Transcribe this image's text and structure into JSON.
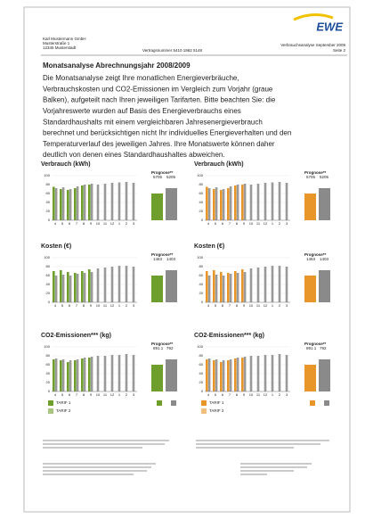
{
  "header": {
    "logo": "EWE",
    "address": [
      "Karl Mustermann GmbH",
      "Musterstraße 1",
      "12345 Musterstadt"
    ],
    "contract": "Vertragsnummer 5410 1962 5148",
    "report": "Verbrauchsanalyse September 2009",
    "page": "Seite 2"
  },
  "title": "Monatsanalyse Abrechnungsjahr 2008/2009",
  "paragraph": [
    "Die Monatsanalyse zeigt Ihre monatlichen Energieverbräuche,",
    "Verbrauchskosten und CO2-Emissionen im Vergleich  zum Vorjahr (graue",
    "Balken), aufgeteilt nach Ihren jeweiligen Tarifarten. Bitte beachten Sie: die",
    "Vorjahreswerte wurden auf Basis des Energieverbrauchs eines",
    "Standardhaushalts mit einem vergleichbaren Jahresenergieverbrauch",
    "berechnet und berücksichtigen nicht Ihr individuelles Energieverhalten und den",
    "Temperaturverlauf des jeweiligen Jahres. Ihre Monatswerte können daher",
    "deutlich von denen eines Standardhaushaltes abweichen."
  ],
  "axis": {
    "months": [
      "4",
      "5",
      "6",
      "7",
      "8",
      "9",
      "10",
      "11",
      "12",
      "1",
      "2",
      "3"
    ],
    "ylim": [
      0,
      100
    ],
    "yticks": [
      0,
      20,
      40,
      60,
      80,
      100
    ]
  },
  "columns": [
    {
      "color": "#6e9e2c",
      "legend": [
        "TARIF 1",
        "TARIF 2"
      ],
      "charts": [
        {
          "title": "Verbrauch (kWh)",
          "prognose_label": "Prognose**",
          "prognose": [
            "5705",
            "5205"
          ],
          "current": [
            75,
            70,
            68,
            72,
            78,
            80
          ],
          "previous": [
            72,
            74,
            70,
            76,
            80,
            82,
            80,
            82,
            84,
            85,
            86,
            84
          ]
        },
        {
          "title": "Kosten (€)",
          "prognose_label": "Prognose**",
          "prognose": [
            "1463",
            "1403"
          ],
          "current": [
            70,
            72,
            68,
            66,
            70,
            74
          ],
          "previous": [
            60,
            62,
            60,
            64,
            66,
            68,
            76,
            78,
            80,
            82,
            82,
            80
          ]
        },
        {
          "title": "CO2-Emissionen*** (kg)",
          "prognose_label": "Prognose**",
          "prognose": [
            "891.1",
            "792"
          ],
          "current": [
            72,
            70,
            66,
            70,
            74,
            76
          ],
          "previous": [
            74,
            72,
            70,
            72,
            76,
            78,
            80,
            80,
            82,
            82,
            84,
            82
          ]
        }
      ]
    },
    {
      "color": "#e8962a",
      "legend": [
        "TARIF 1",
        "TARIF 2"
      ],
      "charts": [
        {
          "title": "Verbrauch (kWh)",
          "prognose_label": "Prognose**",
          "prognose": [
            "5705",
            "5205"
          ],
          "current": [
            75,
            70,
            68,
            72,
            78,
            80
          ],
          "previous": [
            72,
            74,
            70,
            76,
            80,
            82,
            80,
            82,
            84,
            85,
            86,
            84
          ]
        },
        {
          "title": "Kosten (€)",
          "prognose_label": "Prognose**",
          "prognose": [
            "1463",
            "1403"
          ],
          "current": [
            70,
            72,
            68,
            66,
            70,
            74
          ],
          "previous": [
            60,
            62,
            60,
            64,
            66,
            68,
            76,
            78,
            80,
            82,
            82,
            80
          ]
        },
        {
          "title": "CO2-Emissionen*** (kg)",
          "prognose_label": "Prognose**",
          "prognose": [
            "891.1",
            "792"
          ],
          "current": [
            72,
            70,
            66,
            70,
            74,
            76
          ],
          "previous": [
            74,
            72,
            70,
            72,
            76,
            78,
            80,
            80,
            82,
            82,
            84,
            82
          ]
        }
      ]
    }
  ]
}
